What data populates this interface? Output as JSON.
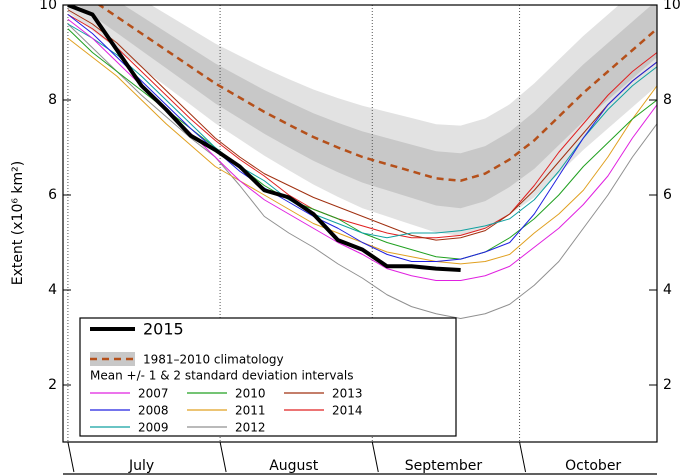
{
  "chart_data": {
    "type": "line",
    "y_label": "Extent (x10⁶ km²)",
    "x": [
      0,
      5,
      10,
      15,
      20,
      25,
      30,
      35,
      40,
      45,
      50,
      55,
      60,
      65,
      70,
      75,
      80,
      85,
      90,
      95,
      100,
      105,
      110,
      115,
      120
    ],
    "xlim": [
      -1,
      120
    ],
    "xticks": [
      {
        "value": 15,
        "label": "July"
      },
      {
        "value": 46,
        "label": "August"
      },
      {
        "value": 76.5,
        "label": "September"
      },
      {
        "value": 107,
        "label": "October"
      }
    ],
    "month_starts": [
      0,
      31,
      62,
      92
    ],
    "ylim": [
      0.8,
      10
    ],
    "yticks": [
      2,
      4,
      6,
      8,
      10
    ],
    "climatology": {
      "name": "1981–2010 climatology",
      "band_label": "Mean +/- 1 & 2 standard deviation intervals",
      "color": "#b5501a",
      "values": [
        10.45,
        10.1,
        9.75,
        9.4,
        9.05,
        8.7,
        8.35,
        8.05,
        7.75,
        7.48,
        7.22,
        7.0,
        6.8,
        6.65,
        6.5,
        6.35,
        6.3,
        6.45,
        6.75,
        7.15,
        7.65,
        8.15,
        8.6,
        9.05,
        9.5
      ],
      "std": [
        0.3,
        0.32,
        0.34,
        0.36,
        0.38,
        0.4,
        0.42,
        0.44,
        0.46,
        0.48,
        0.5,
        0.52,
        0.54,
        0.55,
        0.56,
        0.57,
        0.58,
        0.58,
        0.58,
        0.6,
        0.6,
        0.6,
        0.6,
        0.6,
        0.6
      ]
    },
    "series": [
      {
        "name": "2015",
        "color": "#000000",
        "width": 4,
        "values": [
          10,
          9.8,
          9.05,
          8.3,
          7.8,
          7.25,
          6.95,
          6.6,
          6.1,
          5.95,
          5.6,
          5.05,
          4.85,
          4.5,
          4.5,
          4.45,
          4.42,
          null,
          null,
          null,
          null,
          null,
          null,
          null,
          null
        ]
      },
      {
        "name": "2007",
        "color": "#e020e0",
        "width": 1,
        "values": [
          9.7,
          9.3,
          8.8,
          8.3,
          7.8,
          7.3,
          6.8,
          6.3,
          5.9,
          5.6,
          5.3,
          5.0,
          4.75,
          4.45,
          4.3,
          4.2,
          4.2,
          4.3,
          4.5,
          4.9,
          5.3,
          5.8,
          6.4,
          7.2,
          7.9
        ]
      },
      {
        "name": "2008",
        "color": "#2020e0",
        "width": 1,
        "values": [
          9.8,
          9.4,
          8.9,
          8.4,
          7.9,
          7.4,
          6.95,
          6.5,
          6.15,
          5.85,
          5.55,
          5.3,
          5.0,
          4.75,
          4.6,
          4.6,
          4.65,
          4.8,
          5.0,
          5.6,
          6.4,
          7.2,
          7.9,
          8.4,
          8.8
        ]
      },
      {
        "name": "2009",
        "color": "#10a0a0",
        "width": 1,
        "values": [
          9.6,
          9.3,
          8.95,
          8.5,
          8.0,
          7.5,
          7.0,
          6.6,
          6.3,
          5.9,
          5.6,
          5.4,
          5.2,
          5.1,
          5.2,
          5.2,
          5.25,
          5.35,
          5.5,
          5.9,
          6.5,
          7.2,
          7.8,
          8.3,
          8.7
        ]
      },
      {
        "name": "2010",
        "color": "#20a020",
        "width": 1,
        "values": [
          9.5,
          9.0,
          8.6,
          8.2,
          7.8,
          7.4,
          7.0,
          6.6,
          6.2,
          5.9,
          5.7,
          5.5,
          5.2,
          5.0,
          4.85,
          4.7,
          4.65,
          4.8,
          5.1,
          5.5,
          6.0,
          6.6,
          7.1,
          7.6,
          8.0
        ]
      },
      {
        "name": "2011",
        "color": "#e0a020",
        "width": 1,
        "values": [
          9.3,
          8.9,
          8.5,
          8.0,
          7.5,
          7.05,
          6.6,
          6.3,
          6.0,
          5.7,
          5.4,
          5.2,
          5.0,
          4.8,
          4.7,
          4.6,
          4.55,
          4.6,
          4.75,
          5.2,
          5.6,
          6.1,
          6.8,
          7.6,
          8.3
        ]
      },
      {
        "name": "2012",
        "color": "#909090",
        "width": 1,
        "values": [
          9.6,
          9.1,
          8.6,
          8.1,
          7.65,
          7.2,
          6.8,
          6.2,
          5.55,
          5.2,
          4.9,
          4.55,
          4.25,
          3.9,
          3.65,
          3.5,
          3.4,
          3.5,
          3.7,
          4.1,
          4.6,
          5.3,
          6.0,
          6.8,
          7.5
        ]
      },
      {
        "name": "2013",
        "color": "#a03010",
        "width": 1,
        "values": [
          9.9,
          9.6,
          9.2,
          8.7,
          8.2,
          7.7,
          7.2,
          6.8,
          6.45,
          6.2,
          5.95,
          5.75,
          5.55,
          5.35,
          5.15,
          5.05,
          5.1,
          5.25,
          5.6,
          6.1,
          6.7,
          7.3,
          7.9,
          8.4,
          8.8
        ]
      },
      {
        "name": "2014",
        "color": "#e02020",
        "width": 1,
        "values": [
          9.8,
          9.5,
          9.1,
          8.6,
          8.1,
          7.6,
          7.15,
          6.75,
          6.4,
          6.0,
          5.7,
          5.5,
          5.35,
          5.2,
          5.1,
          5.1,
          5.15,
          5.3,
          5.6,
          6.2,
          6.9,
          7.5,
          8.1,
          8.6,
          9.0
        ]
      }
    ]
  }
}
